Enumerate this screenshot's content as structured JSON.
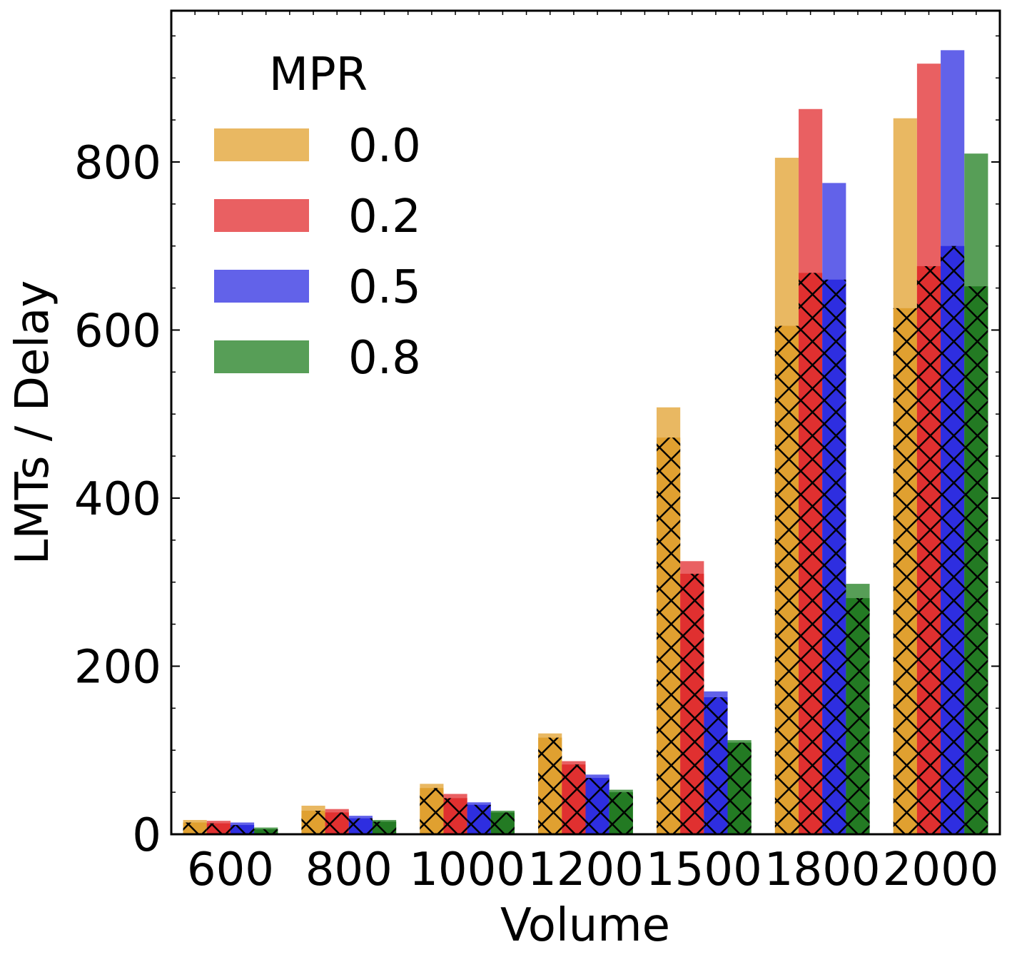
{
  "chart_data": {
    "type": "bar",
    "xlabel": "Volume",
    "ylabel": "LMTs / Delay",
    "categories": [
      "600",
      "800",
      "1000",
      "1200",
      "1500",
      "1800",
      "2000"
    ],
    "ylim": [
      0,
      980
    ],
    "yticks": [
      "0",
      "200",
      "400",
      "600",
      "800"
    ],
    "legend": {
      "title": "MPR",
      "placement": "top-left"
    },
    "series": [
      {
        "name": "0.0",
        "color_delay": "#e9b862",
        "color_lmts": "#e0a030",
        "delay": [
          17,
          34,
          60,
          120,
          508,
          805,
          852
        ],
        "lmts": [
          14,
          28,
          55,
          115,
          472,
          605,
          626
        ]
      },
      {
        "name": "0.2",
        "color_delay": "#e96062",
        "color_lmts": "#e03030",
        "delay": [
          16,
          30,
          48,
          87,
          325,
          863,
          917
        ],
        "lmts": [
          13,
          26,
          43,
          83,
          310,
          668,
          676
        ]
      },
      {
        "name": "0.5",
        "color_delay": "#6262e9",
        "color_lmts": "#2e2ee0",
        "delay": [
          14,
          22,
          38,
          71,
          170,
          775,
          933
        ],
        "lmts": [
          11,
          19,
          35,
          67,
          163,
          660,
          700
        ]
      },
      {
        "name": "0.8",
        "color_delay": "#579e57",
        "color_lmts": "#237a23",
        "delay": [
          8,
          17,
          28,
          53,
          112,
          298,
          810
        ],
        "lmts": [
          6,
          15,
          26,
          50,
          109,
          281,
          652
        ]
      }
    ]
  }
}
